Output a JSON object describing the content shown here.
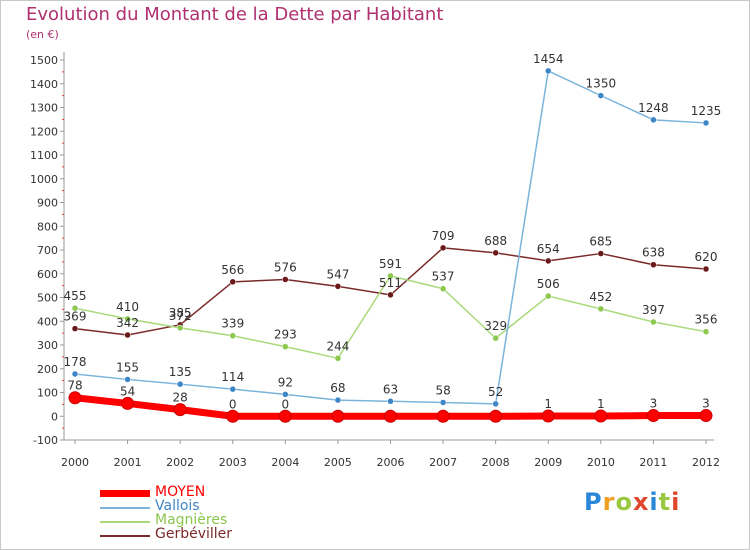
{
  "title": "Evolution du Montant de la Dette par Habitant",
  "subtitle": "(en €)",
  "logo_text": "Proxiti",
  "chart_data": {
    "type": "line",
    "x": [
      "2000",
      "2001",
      "2002",
      "2003",
      "2004",
      "2005",
      "2006",
      "2007",
      "2008",
      "2009",
      "2010",
      "2011",
      "2012"
    ],
    "ylim": [
      -100,
      1500
    ],
    "yticks": [
      -100,
      0,
      100,
      200,
      300,
      400,
      500,
      600,
      700,
      800,
      900,
      1000,
      1100,
      1200,
      1300,
      1400,
      1500
    ],
    "grid": false,
    "legend_position": "bottom-left",
    "series": [
      {
        "name": "MOYEN",
        "color": "#ff0000",
        "marker_color": "#ff0000",
        "values": [
          78,
          54,
          28,
          0,
          0,
          0,
          0,
          0,
          0,
          1,
          1,
          3,
          3
        ],
        "labels": [
          "78",
          "54",
          "28",
          "0",
          "0",
          "",
          "",
          "",
          "",
          "1",
          "1",
          "3",
          "3"
        ]
      },
      {
        "name": "Vallois",
        "color": "#7ab4dc",
        "marker_color": "#3f86c6",
        "values": [
          178,
          155,
          135,
          114,
          92,
          68,
          63,
          58,
          52,
          1454,
          1350,
          1248,
          1235
        ],
        "labels": [
          "178",
          "155",
          "135",
          "114",
          "92",
          "68",
          "63",
          "58",
          "52",
          "1454",
          "1350",
          "1248",
          "1235"
        ]
      },
      {
        "name": "Magnières",
        "color": "#a9d97a",
        "marker_color": "#8cc850",
        "values": [
          455,
          410,
          372,
          339,
          293,
          244,
          591,
          537,
          329,
          506,
          452,
          397,
          356
        ],
        "labels": [
          "455",
          "410",
          "372",
          "339",
          "293",
          "244",
          "591",
          "537",
          "329",
          "506",
          "452",
          "397",
          "356"
        ]
      },
      {
        "name": "Gerbéviller",
        "color": "#7a2a2a",
        "marker_color": "#6a1a1a",
        "values": [
          369,
          342,
          385,
          566,
          576,
          547,
          511,
          709,
          688,
          654,
          685,
          638,
          620
        ],
        "labels": [
          "369",
          "342",
          "385",
          "566",
          "576",
          "547",
          "511",
          "709",
          "688",
          "654",
          "685",
          "638",
          "620"
        ]
      }
    ]
  }
}
